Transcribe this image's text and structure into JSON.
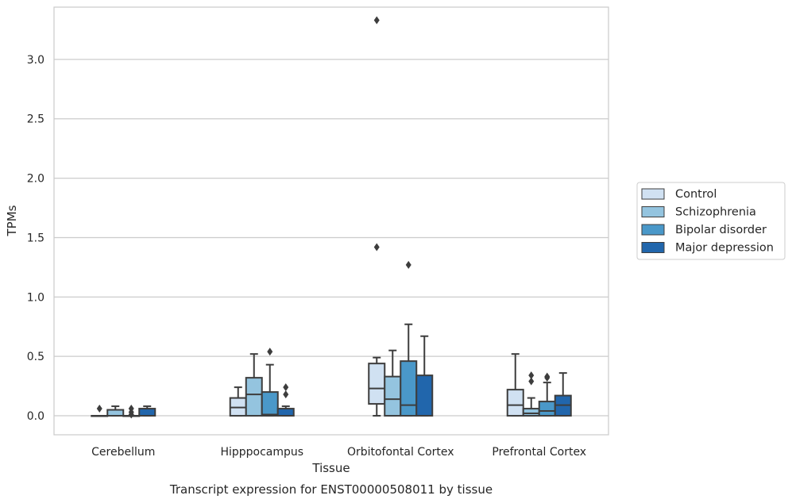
{
  "chart_data": {
    "type": "boxplot",
    "title": "Transcript expression for ENST00000508011 by tissue",
    "xlabel": "Tissue",
    "ylabel": "TPMs",
    "ylim": [
      -0.16,
      3.44
    ],
    "yticks": [
      0.0,
      0.5,
      1.0,
      1.5,
      2.0,
      2.5,
      3.0
    ],
    "ytick_labels": [
      "0.0",
      "0.5",
      "1.0",
      "1.5",
      "2.0",
      "2.5",
      "3.0"
    ],
    "grid": "horizontal",
    "legend_position": "right",
    "categories": [
      "Cerebellum",
      "Hipppocampus",
      "Orbitofontal Cortex",
      "Prefrontal Cortex"
    ],
    "series": [
      {
        "name": "Control",
        "color": "#d0e1f2",
        "boxes": [
          {
            "q1": 0.0,
            "median": 0.0,
            "q3": 0.0,
            "whisker_low": 0.0,
            "whisker_high": 0.0,
            "outliers": [
              0.06
            ]
          },
          {
            "q1": 0.0,
            "median": 0.07,
            "q3": 0.15,
            "whisker_low": 0.0,
            "whisker_high": 0.24,
            "outliers": []
          },
          {
            "q1": 0.1,
            "median": 0.23,
            "q3": 0.44,
            "whisker_low": 0.0,
            "whisker_high": 0.49,
            "outliers": [
              1.42,
              3.33
            ]
          },
          {
            "q1": 0.0,
            "median": 0.09,
            "q3": 0.22,
            "whisker_low": 0.0,
            "whisker_high": 0.52,
            "outliers": []
          }
        ]
      },
      {
        "name": "Schizophrenia",
        "color": "#94c4df",
        "boxes": [
          {
            "q1": 0.0,
            "median": 0.0,
            "q3": 0.05,
            "whisker_low": 0.0,
            "whisker_high": 0.08,
            "outliers": []
          },
          {
            "q1": 0.0,
            "median": 0.18,
            "q3": 0.32,
            "whisker_low": 0.0,
            "whisker_high": 0.52,
            "outliers": []
          },
          {
            "q1": 0.0,
            "median": 0.14,
            "q3": 0.33,
            "whisker_low": 0.0,
            "whisker_high": 0.55,
            "outliers": []
          },
          {
            "q1": 0.0,
            "median": 0.02,
            "q3": 0.06,
            "whisker_low": 0.0,
            "whisker_high": 0.15,
            "outliers": [
              0.29,
              0.34
            ]
          }
        ]
      },
      {
        "name": "Bipolar disorder",
        "color": "#4a98c9",
        "boxes": [
          {
            "q1": 0.0,
            "median": 0.0,
            "q3": 0.0,
            "whisker_low": 0.0,
            "whisker_high": 0.0,
            "outliers": [
              0.01,
              0.03,
              0.06
            ]
          },
          {
            "q1": 0.0,
            "median": 0.01,
            "q3": 0.2,
            "whisker_low": 0.0,
            "whisker_high": 0.43,
            "outliers": [
              0.54
            ]
          },
          {
            "q1": 0.0,
            "median": 0.09,
            "q3": 0.46,
            "whisker_low": 0.0,
            "whisker_high": 0.77,
            "outliers": [
              1.27
            ]
          },
          {
            "q1": 0.0,
            "median": 0.04,
            "q3": 0.12,
            "whisker_low": 0.0,
            "whisker_high": 0.28,
            "outliers": [
              0.32,
              0.33
            ]
          }
        ]
      },
      {
        "name": "Major depression",
        "color": "#2166ac",
        "boxes": [
          {
            "q1": 0.0,
            "median": 0.0,
            "q3": 0.06,
            "whisker_low": 0.0,
            "whisker_high": 0.08,
            "outliers": []
          },
          {
            "q1": 0.0,
            "median": 0.0,
            "q3": 0.06,
            "whisker_low": 0.0,
            "whisker_high": 0.08,
            "outliers": [
              0.18,
              0.24
            ]
          },
          {
            "q1": 0.0,
            "median": 0.0,
            "q3": 0.34,
            "whisker_low": 0.0,
            "whisker_high": 0.67,
            "outliers": []
          },
          {
            "q1": 0.0,
            "median": 0.09,
            "q3": 0.17,
            "whisker_low": 0.0,
            "whisker_high": 0.36,
            "outliers": []
          }
        ]
      }
    ]
  }
}
